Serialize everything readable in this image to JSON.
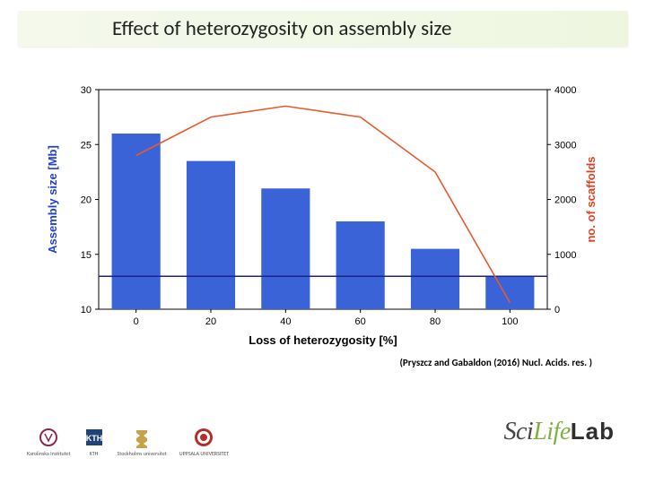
{
  "title": "Effect of heterozygosity on assembly size",
  "citation": "(Pryszcz and Gabaldon (2016) Nucl. Acids. res. )",
  "brand": {
    "sci": "Sci",
    "life": "Life",
    "lab": "Lab"
  },
  "logos": [
    {
      "name": "karolinska",
      "label": "Karolinska Institutet",
      "color": "#8a2a49"
    },
    {
      "name": "kth",
      "label": "KTH",
      "color": "#22437a"
    },
    {
      "name": "su",
      "label": "Stockholms universitet",
      "color": "#c7a14a"
    },
    {
      "name": "uppsala",
      "label": "UPPSALA UNIVERSITET",
      "color": "#b0302a"
    }
  ],
  "chart": {
    "type": "bar+line-dual-axis",
    "background_color": "#ffffff",
    "plot_border_color": "#000000",
    "plot_border_width": 1,
    "x": {
      "label": "Loss of heterozygosity [%]",
      "label_fontsize": 13,
      "label_weight": "bold",
      "label_color": "#000000",
      "ticks": [
        0,
        20,
        40,
        60,
        80,
        100
      ],
      "tick_fontsize": 11,
      "tick_color": "#000000"
    },
    "y_left": {
      "label": "Assembly size [Mb]",
      "label_fontsize": 13,
      "label_weight": "bold",
      "label_color": "#2040d8",
      "min": 10,
      "max": 30,
      "ticks": [
        10,
        15,
        20,
        25,
        30
      ],
      "tick_fontsize": 11,
      "tick_color": "#000000"
    },
    "y_right": {
      "label": "no. of scaffolds",
      "label_fontsize": 13,
      "label_weight": "bold",
      "label_color": "#e04020",
      "min": 0,
      "max": 4000,
      "ticks": [
        0,
        1000,
        2000,
        3000,
        4000
      ],
      "tick_fontsize": 11,
      "tick_color": "#000000"
    },
    "bars": {
      "color": "#3a63d8",
      "width_frac": 0.65,
      "categories": [
        0,
        20,
        40,
        60,
        80,
        100
      ],
      "values": [
        26.0,
        23.5,
        21.0,
        18.0,
        15.5,
        13.0
      ]
    },
    "line": {
      "color": "#e85a2a",
      "width": 1.6,
      "x": [
        0,
        20,
        40,
        60,
        80,
        100
      ],
      "y": [
        2800,
        3500,
        3700,
        3500,
        2500,
        120
      ]
    },
    "refline": {
      "y_left_value": 13.0,
      "color": "#20208a",
      "width": 1.4
    }
  }
}
